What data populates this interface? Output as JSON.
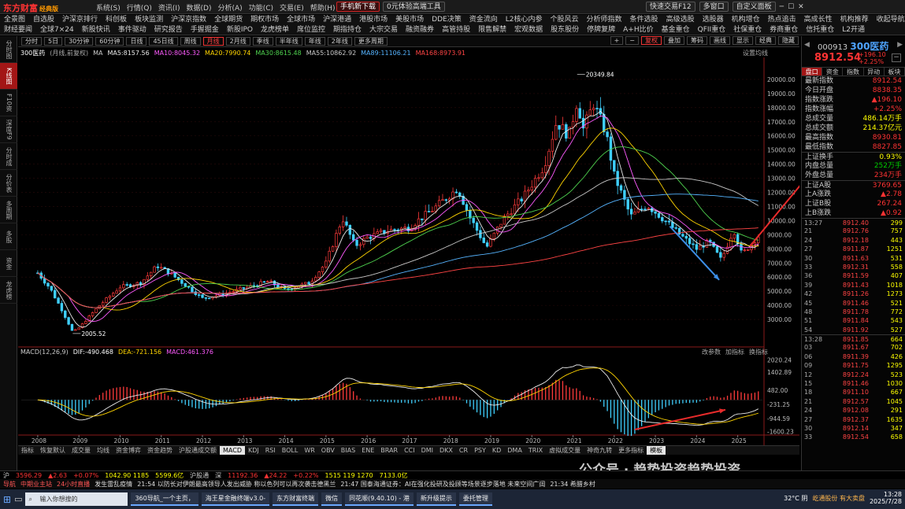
{
  "app": {
    "logo": "东方财富",
    "edition": "经典版",
    "menu": [
      "系统(S)",
      "行情(Q)",
      "资讯(I)",
      "数据(D)",
      "分析(A)",
      "功能(C)",
      "交易(E)",
      "帮助(H)"
    ],
    "download": "手机新下载",
    "trial": "0元体验高端工具",
    "quick_trade": "快速交易F12",
    "multi_window": "多窗口",
    "custom": "自定义面板"
  },
  "nav1": [
    "全景图",
    "自选股",
    "沪深京排行",
    "科创板",
    "板块监测",
    "沪深京指数",
    "全球期货",
    "期权市场",
    "全球市场",
    "沪深港通",
    "港股市场",
    "美股市场",
    "DDE决策",
    "资金流向",
    "L2核心内参",
    "个股风云",
    "分析师指数",
    "条件选股",
    "高级选股",
    "选股器",
    "机构增仓",
    "热点追击",
    "高成长性",
    "机构推荐",
    "收起导航",
    "返回"
  ],
  "nav2": [
    "财经要闻",
    "全球7×24",
    "新股快讯",
    "事件驱动",
    "研究报告",
    "手握掘金",
    "新股IPO",
    "龙虎榜单",
    "席位监控",
    "期指持仓",
    "大宗交易",
    "融资融券",
    "高管持股",
    "限售解禁",
    "宏观数据",
    "股东股份",
    "停牌复牌",
    "A+H比价",
    "基金重仓",
    "QFII重仓",
    "社保重仓",
    "券商重仓",
    "信托重仓",
    "L2开通"
  ],
  "left_tabs": [
    "分时图",
    "K线图",
    "F10资料",
    "深度F9",
    "分时成交",
    "分价表",
    "多周期",
    "多股",
    "资金",
    "龙虎榜"
  ],
  "periods": [
    "分时",
    "5日",
    "30分钟",
    "60分钟",
    "日线",
    "45日线",
    "周线",
    "月线",
    "2月线",
    "季线",
    "半年线",
    "年线",
    "2年线",
    "更多周期"
  ],
  "active_period": "月线",
  "tools": [
    "复权",
    "叠加",
    "筹码",
    "画线",
    "显示",
    "经典",
    "隐藏"
  ],
  "ma": {
    "name": "300医药",
    "note": "(月线,前复权)",
    "items": [
      {
        "l": "MA",
        "c": "#ccc"
      },
      {
        "l": "MA5:8157.56",
        "c": "#e8e8e8"
      },
      {
        "l": "MA10:8045.32",
        "c": "#ff5bff"
      },
      {
        "l": "MA20:7990.74",
        "c": "#ffd400"
      },
      {
        "l": "MA30:8615.48",
        "c": "#4fd34f"
      },
      {
        "l": "MA55:10862.92",
        "c": "#c9c9c9"
      },
      {
        "l": "MA89:11106.21",
        "c": "#56b4ff"
      },
      {
        "l": "MA168:8973.91",
        "c": "#ff4444"
      }
    ],
    "setting": "设置均线"
  },
  "macd": {
    "label": "MACD(12,26,9)",
    "dif": "DIF:-490.468",
    "dea": "DEA:-721.156",
    "macd": "MACD:461.376",
    "links": [
      "改参数",
      "加指标",
      "换指标"
    ]
  },
  "chart_data": {
    "type": "candlestick",
    "title": "300医药",
    "period": "月线",
    "y_axis": [
      20000,
      19000,
      18000,
      17000,
      16000,
      15000,
      14000,
      13000,
      12000,
      11000,
      10000,
      9000,
      8000,
      7000,
      6000,
      5000,
      4000,
      3000
    ],
    "ylim": [
      1500,
      21000
    ],
    "x_labels": [
      "2008",
      "2009",
      "2010",
      "2011",
      "2012",
      "2013",
      "2014",
      "2015",
      "2016",
      "2017",
      "2018",
      "2019",
      "2020",
      "2021",
      "2022",
      "2023",
      "2024",
      "2025"
    ],
    "high_label": "20349.84",
    "low_label": "2005.52",
    "keypoints": [
      {
        "t": 2008.0,
        "v": 6300
      },
      {
        "t": 2008.3,
        "v": 5200
      },
      {
        "t": 2008.6,
        "v": 3600
      },
      {
        "t": 2008.85,
        "v": 2100
      },
      {
        "t": 2009.0,
        "v": 2400
      },
      {
        "t": 2009.5,
        "v": 4000
      },
      {
        "t": 2010.0,
        "v": 5300
      },
      {
        "t": 2010.5,
        "v": 5600
      },
      {
        "t": 2010.9,
        "v": 6800
      },
      {
        "t": 2011.2,
        "v": 6300
      },
      {
        "t": 2011.6,
        "v": 5400
      },
      {
        "t": 2012.0,
        "v": 4500
      },
      {
        "t": 2012.5,
        "v": 4800
      },
      {
        "t": 2013.0,
        "v": 5200
      },
      {
        "t": 2013.6,
        "v": 5700
      },
      {
        "t": 2014.0,
        "v": 5100
      },
      {
        "t": 2014.6,
        "v": 5600
      },
      {
        "t": 2015.0,
        "v": 7000
      },
      {
        "t": 2015.4,
        "v": 10200
      },
      {
        "t": 2015.7,
        "v": 8200
      },
      {
        "t": 2016.0,
        "v": 8800
      },
      {
        "t": 2016.5,
        "v": 9300
      },
      {
        "t": 2017.0,
        "v": 9500
      },
      {
        "t": 2017.6,
        "v": 10800
      },
      {
        "t": 2018.2,
        "v": 12300
      },
      {
        "t": 2018.5,
        "v": 10200
      },
      {
        "t": 2018.9,
        "v": 8100
      },
      {
        "t": 2019.3,
        "v": 10100
      },
      {
        "t": 2019.8,
        "v": 11700
      },
      {
        "t": 2020.3,
        "v": 13900
      },
      {
        "t": 2020.6,
        "v": 17000
      },
      {
        "t": 2020.9,
        "v": 16000
      },
      {
        "t": 2021.1,
        "v": 18500
      },
      {
        "t": 2021.25,
        "v": 16500
      },
      {
        "t": 2021.5,
        "v": 18300
      },
      {
        "t": 2021.8,
        "v": 16200
      },
      {
        "t": 2022.0,
        "v": 13200
      },
      {
        "t": 2022.4,
        "v": 10300
      },
      {
        "t": 2022.8,
        "v": 11100
      },
      {
        "t": 2023.2,
        "v": 10100
      },
      {
        "t": 2023.6,
        "v": 9000
      },
      {
        "t": 2024.0,
        "v": 8000
      },
      {
        "t": 2024.3,
        "v": 8500
      },
      {
        "t": 2024.6,
        "v": 7200
      },
      {
        "t": 2024.9,
        "v": 9400
      },
      {
        "t": 2025.1,
        "v": 7600
      },
      {
        "t": 2025.5,
        "v": 8912
      }
    ],
    "macd_axis": [
      "2020.24",
      "1402.89",
      "482.00",
      "-231.25",
      "-944.59",
      "-1600.23"
    ],
    "macd_lim": [
      -1700,
      2200
    ]
  },
  "bottom_tabs": [
    "指标",
    "恢复默认",
    "成交量",
    "均线",
    "资金博弈",
    "资金趋势",
    "沪股通成交额",
    "MACD",
    "KDJ",
    "RSI",
    "BOLL",
    "WR",
    "OBV",
    "BIAS",
    "ENE",
    "BRAR",
    "CCI",
    "DMI",
    "DKX",
    "CR",
    "PSY",
    "KD",
    "DMA",
    "TRIX",
    "虚拟成交量",
    "神奇九转",
    "更多指标",
    "模板"
  ],
  "quote": {
    "code": "000913",
    "name": "300医药",
    "price": "8912.54",
    "chg": "+196.10",
    "pct": "+2.25%",
    "tabs": [
      "盘口",
      "资金",
      "指数",
      "异动",
      "板块"
    ],
    "rows": [
      {
        "l": "最新指数",
        "v": "8912.54",
        "c": "red"
      },
      {
        "l": "今日开盘",
        "v": "8838.35",
        "c": "red"
      },
      {
        "l": "指数涨跌",
        "v": "▲196.10",
        "c": "red"
      },
      {
        "l": "指数涨幅",
        "v": "+2.25%",
        "c": "red"
      },
      {
        "l": "总成交量",
        "v": "486.14万手",
        "c": "yel"
      },
      {
        "l": "总成交额",
        "v": "214.37亿元",
        "c": "yel"
      },
      {
        "l": "最高指数",
        "v": "8930.81",
        "c": "red"
      },
      {
        "l": "最低指数",
        "v": "8827.85",
        "c": "red"
      }
    ],
    "rows2": [
      {
        "l": "上证换手",
        "v": "0.93%",
        "c": "yel"
      },
      {
        "l": "内盘总量",
        "v": "252万手",
        "c": "green"
      },
      {
        "l": "外盘总量",
        "v": "234万手",
        "c": "red"
      }
    ],
    "rows3": [
      {
        "l": "上证A股",
        "v": "3769.65",
        "c": "red"
      },
      {
        "l": "上A涨跌",
        "v": "▲2.78",
        "c": "red"
      },
      {
        "l": "上证B股",
        "v": "267.24",
        "c": "red"
      },
      {
        "l": "上B涨跌",
        "v": "▲0.92",
        "c": "red"
      }
    ],
    "ticks1": [
      [
        "13:27",
        "8912.40",
        "299"
      ],
      [
        "21",
        "8912.76",
        "757"
      ],
      [
        "24",
        "8912.18",
        "443"
      ],
      [
        "27",
        "8911.87",
        "1251"
      ],
      [
        "30",
        "8911.63",
        "531"
      ],
      [
        "33",
        "8912.31",
        "558"
      ],
      [
        "36",
        "8911.59",
        "407"
      ],
      [
        "39",
        "8911.43",
        "1018"
      ],
      [
        "42",
        "8911.26",
        "1273"
      ],
      [
        "45",
        "8911.46",
        "521"
      ],
      [
        "48",
        "8911.78",
        "772"
      ],
      [
        "51",
        "8911.84",
        "543"
      ],
      [
        "54",
        "8911.92",
        "527"
      ]
    ],
    "ticks2": [
      [
        "13:28",
        "8911.85",
        "664"
      ],
      [
        "03",
        "8911.67",
        "702"
      ],
      [
        "06",
        "8911.39",
        "426"
      ],
      [
        "09",
        "8911.75",
        "1295"
      ],
      [
        "12",
        "8912.24",
        "523"
      ],
      [
        "15",
        "8911.46",
        "1030"
      ],
      [
        "18",
        "8911.10",
        "667"
      ],
      [
        "21",
        "8912.57",
        "1045"
      ],
      [
        "24",
        "8912.08",
        "291"
      ],
      [
        "27",
        "8912.37",
        "1635"
      ],
      [
        "30",
        "8912.14",
        "347"
      ],
      [
        "33",
        "8912.54",
        "658"
      ]
    ]
  },
  "ticker": [
    {
      "t": "沪",
      "c": "#ccc"
    },
    {
      "t": "3596.29",
      "c": "#f33"
    },
    {
      "t": "▲2.63",
      "c": "#f33"
    },
    {
      "t": "+0.07%",
      "c": "#f33"
    },
    {
      "t": "1042.90 1185",
      "c": "#ff0"
    },
    {
      "t": "5599.6亿",
      "c": "#ff0"
    },
    {
      "t": "沪股通",
      "c": "#ccc"
    },
    {
      "t": "深",
      "c": "#ccc"
    },
    {
      "t": "11192.36",
      "c": "#f33"
    },
    {
      "t": "▲24.22",
      "c": "#f33"
    },
    {
      "t": "+0.22%",
      "c": "#f33"
    },
    {
      "t": "1515 119 1270",
      "c": "#ff0"
    },
    {
      "t": "7133.0亿",
      "c": "#ff0"
    }
  ],
  "news": [
    "导航",
    "中期业主站",
    "24小时直播",
    "发生雷乱疫情",
    "21:54 以防长对伊朗最高领导人发出威胁 称以色列可以再次袭击德黑兰",
    "21:47 国泰海通证券：AI在强化投研及投顾等场景逐步落地 未来空间广阔",
    "21:34 希腊乡村"
  ],
  "taskbar": {
    "search": "输入你想搜的",
    "apps": [
      "360导航_一个主页，",
      "海王星金融终端v3.0-",
      "东方财富终端",
      "微信",
      "同花顺(9.40.10) - 港",
      "新升级提示",
      "委托管理"
    ],
    "weather": "32°C 阴",
    "time": "13:28",
    "date": "2025/7/28",
    "news_item": "屹通股份 有大卖盘"
  },
  "watermark": "公众号 · 趋势投资趋势投资"
}
